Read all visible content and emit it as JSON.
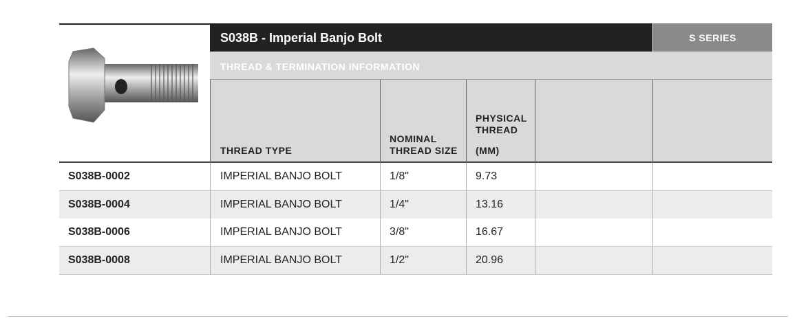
{
  "header": {
    "title": "S038B - Imperial Banjo Bolt",
    "series": "S SERIES",
    "subtitle": "THREAD & TERMINATION INFORMATION"
  },
  "table": {
    "columns": [
      "THREAD TYPE",
      "NOMINAL THREAD SIZE",
      "PHYSICAL THREAD",
      "(MM)"
    ],
    "rows": [
      [
        "S038B-0002",
        "IMPERIAL BANJO BOLT",
        "1/8\"",
        "9.73"
      ],
      [
        "S038B-0004",
        "IMPERIAL BANJO BOLT",
        "1/4\"",
        "13.16"
      ],
      [
        "S038B-0006",
        "IMPERIAL BANJO BOLT",
        "3/8\"",
        "16.67"
      ],
      [
        "S038B-0008",
        "IMPERIAL BANJO BOLT",
        "1/2\"",
        "20.96"
      ]
    ]
  }
}
